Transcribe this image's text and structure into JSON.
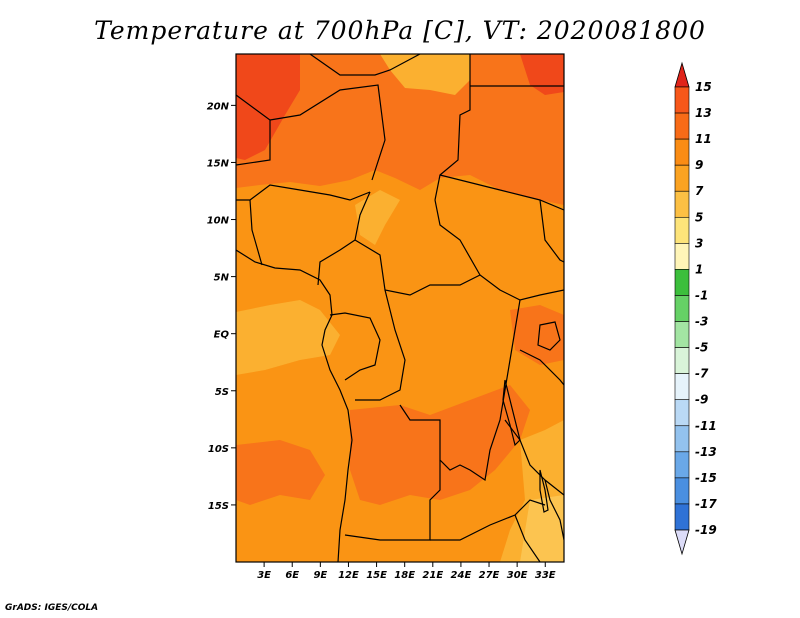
{
  "title": "Temperature at 700hPa [C], VT: 2020081800",
  "credit": "GrADS: IGES/COLA",
  "map": {
    "lon_range": [
      0,
      35
    ],
    "lat_range": [
      -20,
      24.5
    ],
    "lat_ticks": [
      {
        "label": "20N",
        "value": 20
      },
      {
        "label": "15N",
        "value": 15
      },
      {
        "label": "10N",
        "value": 10
      },
      {
        "label": "5N",
        "value": 5
      },
      {
        "label": "EQ",
        "value": 0
      },
      {
        "label": "5S",
        "value": -5
      },
      {
        "label": "10S",
        "value": -10
      },
      {
        "label": "15S",
        "value": -15
      }
    ],
    "lon_ticks": [
      {
        "label": "3E",
        "value": 3
      },
      {
        "label": "6E",
        "value": 6
      },
      {
        "label": "9E",
        "value": 9
      },
      {
        "label": "12E",
        "value": 12
      },
      {
        "label": "15E",
        "value": 15
      },
      {
        "label": "18E",
        "value": 18
      },
      {
        "label": "21E",
        "value": 21
      },
      {
        "label": "24E",
        "value": 24
      },
      {
        "label": "27E",
        "value": 27
      },
      {
        "label": "30E",
        "value": 30
      },
      {
        "label": "33E",
        "value": 33
      }
    ]
  },
  "colorbar": {
    "levels": [
      "15",
      "13",
      "11",
      "9",
      "7",
      "5",
      "3",
      "1",
      "-1",
      "-3",
      "-5",
      "-7",
      "-9",
      "-11",
      "-13",
      "-15",
      "-17",
      "-19"
    ],
    "colors": [
      "#f5401c",
      "#f7571a",
      "#f86b17",
      "#fa8c14",
      "#fba322",
      "#fcc044",
      "#fde47a",
      "#fff5b8",
      "#3cbf3c",
      "#66d166",
      "#a3e5a3",
      "#d9f4d9",
      "#e6f3fb",
      "#bad9f5",
      "#93c2ee",
      "#6aa8e8",
      "#4a8fe0",
      "#2f72d6",
      "#1f55c7",
      "#1434a8",
      "#0a1f8a",
      "#08136b"
    ],
    "top_color": "#e0241a",
    "bottom_color": "#dcdcf8"
  }
}
